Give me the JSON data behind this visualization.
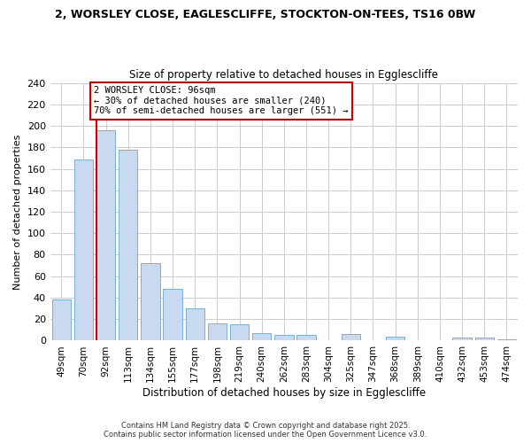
{
  "title_line1": "2, WORSLEY CLOSE, EAGLESCLIFFE, STOCKTON-ON-TEES, TS16 0BW",
  "title_line2": "Size of property relative to detached houses in Egglescliffe",
  "xlabel": "Distribution of detached houses by size in Egglescliffe",
  "ylabel": "Number of detached properties",
  "bar_labels": [
    "49sqm",
    "70sqm",
    "92sqm",
    "113sqm",
    "134sqm",
    "155sqm",
    "177sqm",
    "198sqm",
    "219sqm",
    "240sqm",
    "262sqm",
    "283sqm",
    "304sqm",
    "325sqm",
    "347sqm",
    "368sqm",
    "389sqm",
    "410sqm",
    "432sqm",
    "453sqm",
    "474sqm"
  ],
  "bar_values": [
    38,
    169,
    196,
    178,
    72,
    48,
    30,
    16,
    15,
    7,
    5,
    5,
    0,
    6,
    0,
    4,
    0,
    0,
    3,
    3,
    1
  ],
  "bar_color": "#c9d9f0",
  "bar_edge_color": "#7bafd4",
  "vline_color": "#cc0000",
  "vline_x_index": 2,
  "annotation_text": "2 WORSLEY CLOSE: 96sqm\n← 30% of detached houses are smaller (240)\n70% of semi-detached houses are larger (551) →",
  "annotation_box_color": "#ffffff",
  "annotation_box_edge": "#cc0000",
  "ylim": [
    0,
    240
  ],
  "yticks": [
    0,
    20,
    40,
    60,
    80,
    100,
    120,
    140,
    160,
    180,
    200,
    220,
    240
  ],
  "grid_color": "#cccccc",
  "bg_color": "#ffffff",
  "footer_line1": "Contains HM Land Registry data © Crown copyright and database right 2025.",
  "footer_line2": "Contains public sector information licensed under the Open Government Licence v3.0."
}
